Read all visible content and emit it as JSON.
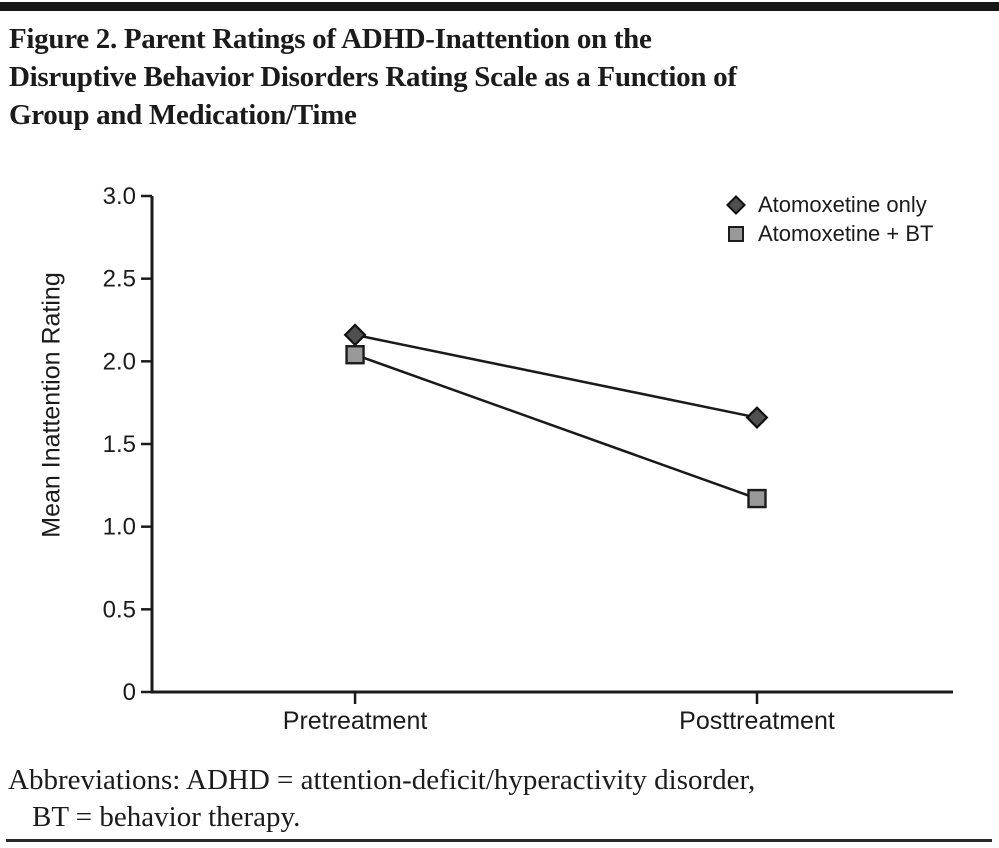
{
  "figure": {
    "title": "Figure 2. Parent Ratings of ADHD-Inattention on the\nDisruptive Behavior Disorders Rating Scale as a Function of\nGroup and Medication/Time",
    "abbreviations": [
      "Abbreviations: ADHD = attention-deficit/hyperactivity disorder,",
      "BT = behavior therapy."
    ]
  },
  "chart_data": {
    "type": "line",
    "categories": [
      "Pretreatment",
      "Posttreatment"
    ],
    "series": [
      {
        "name": "Atomoxetine only",
        "values": [
          2.16,
          1.66
        ],
        "marker": "diamond",
        "fill": "#4f4f4f",
        "stroke": "#111111"
      },
      {
        "name": "Atomoxetine + BT",
        "values": [
          2.04,
          1.17
        ],
        "marker": "square",
        "fill": "#999999",
        "stroke": "#1c1c1c"
      }
    ],
    "xlabel": "",
    "ylabel": "Mean Inattention Rating",
    "ylim": [
      0,
      3.0
    ],
    "yticks": [
      0,
      0.5,
      1.0,
      1.5,
      2.0,
      2.5,
      3.0
    ],
    "ytick_labels": [
      "0",
      "0.5",
      "1.0",
      "1.5",
      "2.0",
      "2.5",
      "3.0"
    ],
    "line_color": "#1a1a1a",
    "axis_color": "#1a1a1a",
    "legend_position": "top-right",
    "grid": false
  }
}
